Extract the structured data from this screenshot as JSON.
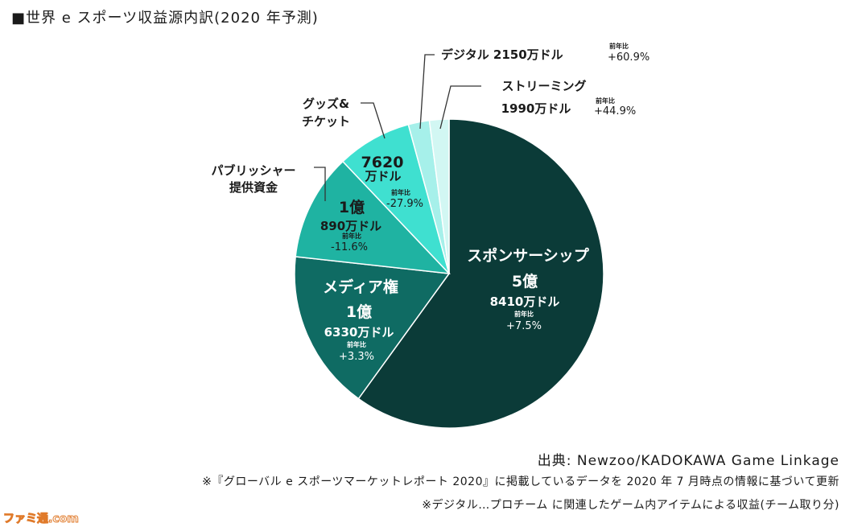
{
  "title": "■世界 e スポーツ収益源内訳(2020 年予測)",
  "chart_data": {
    "type": "pie",
    "title": "■世界 e スポーツ収益源内訳(2020 年予測)",
    "yoy_label": "前年比",
    "slices": [
      {
        "name": "スポンサーシップ",
        "amount_lines": [
          "5億",
          "8410万ドル"
        ],
        "value": 58410,
        "yoy": "+7.5%",
        "color": "#0b3b38"
      },
      {
        "name": "メディア権",
        "amount_lines": [
          "1億",
          "6330万ドル"
        ],
        "value": 16330,
        "yoy": "+3.3%",
        "color": "#0f6b63"
      },
      {
        "name": "パブリッシャー提供資金",
        "name_lines": [
          "パブリッシャー",
          "提供資金"
        ],
        "amount_lines": [
          "1億",
          "890万ドル"
        ],
        "value": 10890,
        "yoy": "-11.6%",
        "color": "#1fb3a2"
      },
      {
        "name": "グッズ&チケット",
        "name_lines": [
          "グッズ&",
          "チケット"
        ],
        "amount_lines": [
          "7620",
          "万ドル"
        ],
        "value": 7620,
        "yoy": "-27.9%",
        "color": "#3fe0d0"
      },
      {
        "name": "デジタル",
        "amount_lines": [
          "2150万ドル"
        ],
        "value": 2150,
        "yoy": "+60.9%",
        "color": "#a6f0ea"
      },
      {
        "name": "ストリーミング",
        "amount_lines": [
          "1990万ドル"
        ],
        "value": 1990,
        "yoy": "+44.9%",
        "color": "#d2f7f3"
      }
    ]
  },
  "footer": {
    "credit": "出典: Newzoo/KADOKAWA Game Linkage",
    "note1": "※『グローバル e スポーツマーケットレポート 2020』に掲載しているデータを 2020 年 7 月時点の情報に基づいて更新",
    "note2": "※デジタル…プロチーム に関連したゲーム内アイテムによる収益(チーム取り分)"
  },
  "watermark": "ファミ通.com"
}
